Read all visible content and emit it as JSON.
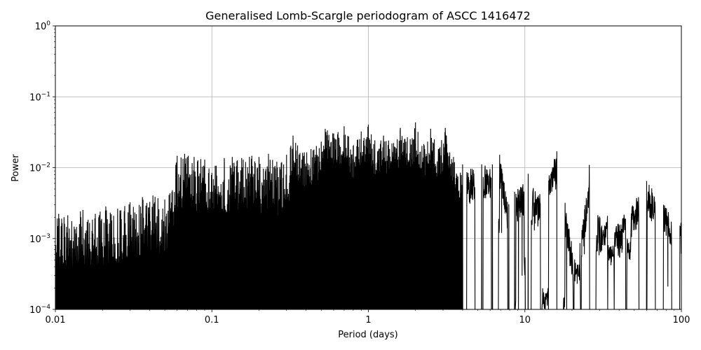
{
  "chart_data": {
    "type": "line",
    "title": "Generalised Lomb-Scargle periodogram of ASCC 1416472",
    "xlabel": "Period (days)",
    "ylabel": "Power",
    "xscale": "log",
    "yscale": "log",
    "xlim": [
      0.01,
      100
    ],
    "ylim": [
      0.0001,
      1
    ],
    "grid": true,
    "line_color": "#000000",
    "x_ticks": [
      {
        "value": 0.01,
        "label": "0.01"
      },
      {
        "value": 0.1,
        "label": "0.1"
      },
      {
        "value": 1,
        "label": "1"
      },
      {
        "value": 10,
        "label": "10"
      },
      {
        "value": 100,
        "label": "100"
      }
    ],
    "y_ticks": [
      {
        "value": 0.0001,
        "base": "10",
        "exp": "−4"
      },
      {
        "value": 0.001,
        "base": "10",
        "exp": "−3"
      },
      {
        "value": 0.01,
        "base": "10",
        "exp": "−2"
      },
      {
        "value": 0.1,
        "base": "10",
        "exp": "−1"
      },
      {
        "value": 1,
        "base": "10",
        "exp": "0"
      }
    ],
    "peaks": [
      {
        "x": 0.0105,
        "y": 0.0022
      },
      {
        "x": 0.012,
        "y": 0.0021
      },
      {
        "x": 0.015,
        "y": 0.0025
      },
      {
        "x": 0.018,
        "y": 0.0022
      },
      {
        "x": 0.021,
        "y": 0.0028
      },
      {
        "x": 0.025,
        "y": 0.0026
      },
      {
        "x": 0.03,
        "y": 0.0032
      },
      {
        "x": 0.036,
        "y": 0.0038
      },
      {
        "x": 0.042,
        "y": 0.004
      },
      {
        "x": 0.05,
        "y": 0.0035
      },
      {
        "x": 0.054,
        "y": 0.0043
      },
      {
        "x": 0.06,
        "y": 0.0145
      },
      {
        "x": 0.067,
        "y": 0.0155
      },
      {
        "x": 0.077,
        "y": 0.014
      },
      {
        "x": 0.09,
        "y": 0.0128
      },
      {
        "x": 0.105,
        "y": 0.0105
      },
      {
        "x": 0.12,
        "y": 0.0135
      },
      {
        "x": 0.135,
        "y": 0.014
      },
      {
        "x": 0.155,
        "y": 0.0135
      },
      {
        "x": 0.18,
        "y": 0.0145
      },
      {
        "x": 0.2,
        "y": 0.014
      },
      {
        "x": 0.23,
        "y": 0.0155
      },
      {
        "x": 0.26,
        "y": 0.012
      },
      {
        "x": 0.3,
        "y": 0.015
      },
      {
        "x": 0.33,
        "y": 0.028
      },
      {
        "x": 0.38,
        "y": 0.016
      },
      {
        "x": 0.43,
        "y": 0.018
      },
      {
        "x": 0.5,
        "y": 0.023
      },
      {
        "x": 0.53,
        "y": 0.035
      },
      {
        "x": 0.6,
        "y": 0.03
      },
      {
        "x": 0.7,
        "y": 0.038
      },
      {
        "x": 0.8,
        "y": 0.02
      },
      {
        "x": 0.9,
        "y": 0.032
      },
      {
        "x": 1.0,
        "y": 0.04
      },
      {
        "x": 1.1,
        "y": 0.024
      },
      {
        "x": 1.25,
        "y": 0.028
      },
      {
        "x": 1.45,
        "y": 0.022
      },
      {
        "x": 1.6,
        "y": 0.036
      },
      {
        "x": 1.85,
        "y": 0.025
      },
      {
        "x": 2.0,
        "y": 0.043
      },
      {
        "x": 2.2,
        "y": 0.02
      },
      {
        "x": 2.5,
        "y": 0.035
      },
      {
        "x": 2.8,
        "y": 0.018
      },
      {
        "x": 3.1,
        "y": 0.036
      },
      {
        "x": 3.5,
        "y": 0.014
      },
      {
        "x": 4.0,
        "y": 0.011
      },
      {
        "x": 4.6,
        "y": 0.0095
      },
      {
        "x": 5.3,
        "y": 0.011
      },
      {
        "x": 6.2,
        "y": 0.011
      },
      {
        "x": 6.9,
        "y": 0.015
      },
      {
        "x": 7.9,
        "y": 0.003
      },
      {
        "x": 8.6,
        "y": 0.0045
      },
      {
        "x": 10.5,
        "y": 0.0081
      },
      {
        "x": 12.2,
        "y": 0.004
      },
      {
        "x": 16.0,
        "y": 0.0168
      },
      {
        "x": 20.8,
        "y": 0.0005
      },
      {
        "x": 22.5,
        "y": 0.00085
      },
      {
        "x": 25.8,
        "y": 0.0108
      },
      {
        "x": 31.0,
        "y": 0.0015
      },
      {
        "x": 33.5,
        "y": 0.0017
      },
      {
        "x": 39.5,
        "y": 0.0016
      },
      {
        "x": 60.0,
        "y": 0.0064
      },
      {
        "x": 100.0,
        "y": 0.0017
      }
    ],
    "troughs": [
      {
        "x": 7.1,
        "y": 0.0012
      },
      {
        "x": 9.1,
        "y": 0.0001
      },
      {
        "x": 9.6,
        "y": 0.0003
      },
      {
        "x": 11.5,
        "y": 0.0013
      },
      {
        "x": 13.5,
        "y": 0.0001
      },
      {
        "x": 18.5,
        "y": 0.0001
      },
      {
        "x": 21.6,
        "y": 0.00023
      },
      {
        "x": 24.0,
        "y": 0.0006
      },
      {
        "x": 29.8,
        "y": 0.00058
      },
      {
        "x": 32.2,
        "y": 0.0011
      },
      {
        "x": 35.5,
        "y": 0.00042
      },
      {
        "x": 42.0,
        "y": 0.0012
      },
      {
        "x": 47.0,
        "y": 0.0005
      },
      {
        "x": 82.0,
        "y": 0.00021
      }
    ]
  }
}
